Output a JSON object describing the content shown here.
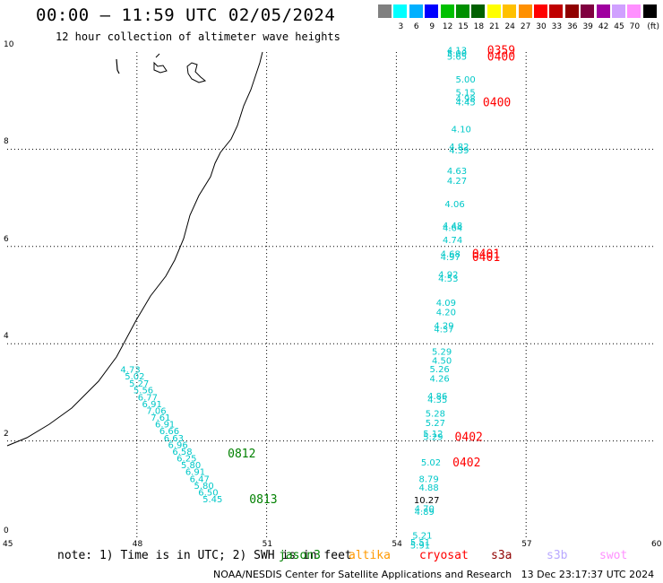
{
  "header": {
    "title": "00:00 – 11:59 UTC 02/05/2024",
    "subtitle": "12 hour collection of altimeter wave heights"
  },
  "color_scale": {
    "unit": "(ft)",
    "swatches": [
      {
        "color": "#808080",
        "label": ""
      },
      {
        "color": "#00ffff",
        "label": "3"
      },
      {
        "color": "#00b0ff",
        "label": "6"
      },
      {
        "color": "#0000ff",
        "label": "9"
      },
      {
        "color": "#00c000",
        "label": "12"
      },
      {
        "color": "#009000",
        "label": "15"
      },
      {
        "color": "#006000",
        "label": "18"
      },
      {
        "color": "#ffff00",
        "label": "21"
      },
      {
        "color": "#ffc000",
        "label": "24"
      },
      {
        "color": "#ff9000",
        "label": "27"
      },
      {
        "color": "#ff0000",
        "label": "30"
      },
      {
        "color": "#c00000",
        "label": "33"
      },
      {
        "color": "#900000",
        "label": "36"
      },
      {
        "color": "#800040",
        "label": "39"
      },
      {
        "color": "#a000a0",
        "label": "42"
      },
      {
        "color": "#d0a0ff",
        "label": "45"
      },
      {
        "color": "#ff90ff",
        "label": "70"
      },
      {
        "color": "#000000",
        "label": ""
      }
    ]
  },
  "footer": {
    "note": "note: 1) Time is in UTC; 2) SWH is in feet",
    "credit": "NOAA/NESDIS Center for Satellite Applications and Research   13 Dec 23:17:37 UTC 2024",
    "satellites": [
      {
        "name": "jason3",
        "color": "#008000"
      },
      {
        "name": "altika",
        "color": "#ff9900"
      },
      {
        "name": "cryosat",
        "color": "#ff0000"
      },
      {
        "name": "s3a",
        "color": "#900000"
      },
      {
        "name": "s3b",
        "color": "#b8a8ff"
      },
      {
        "name": "swot",
        "color": "#ff90ff"
      }
    ]
  },
  "chart_data": {
    "type": "scatter",
    "title": "00:00 – 11:59 UTC 02/05/2024",
    "subtitle": "12 hour collection of altimeter wave heights",
    "xlabel": "",
    "ylabel": "",
    "xlim": [
      45,
      60
    ],
    "ylim": [
      0,
      10
    ],
    "x_ticks": [
      "45",
      "48",
      "51",
      "54",
      "57",
      "60"
    ],
    "y_ticks": [
      "0",
      "2",
      "4",
      "6",
      "8",
      "10"
    ],
    "grid": true,
    "tracks": [
      {
        "satellite": "jason3",
        "label_color": "#008000",
        "value_color": "#00c8c8",
        "points": [
          {
            "lon": 47.85,
            "lat": 3.48,
            "swh": "4.73"
          },
          {
            "lon": 47.95,
            "lat": 3.34,
            "swh": "5.02"
          },
          {
            "lon": 48.05,
            "lat": 3.19,
            "swh": "5.27"
          },
          {
            "lon": 48.15,
            "lat": 3.05,
            "swh": "5.56"
          },
          {
            "lon": 48.25,
            "lat": 2.91,
            "swh": "6.77"
          },
          {
            "lon": 48.35,
            "lat": 2.77,
            "swh": "6.91"
          },
          {
            "lon": 48.45,
            "lat": 2.63,
            "swh": "7.06"
          },
          {
            "lon": 48.55,
            "lat": 2.49,
            "swh": "7.61"
          },
          {
            "lon": 48.65,
            "lat": 2.35,
            "swh": "6.91"
          },
          {
            "lon": 48.75,
            "lat": 2.21,
            "swh": "6.66"
          },
          {
            "lon": 48.85,
            "lat": 2.07,
            "swh": "6.63"
          },
          {
            "lon": 48.95,
            "lat": 1.93,
            "swh": "6.96"
          },
          {
            "lon": 49.05,
            "lat": 1.79,
            "swh": "6.58"
          },
          {
            "lon": 49.15,
            "lat": 1.65,
            "swh": "6.25"
          },
          {
            "lon": 49.25,
            "lat": 1.51,
            "swh": "5.80"
          },
          {
            "lon": 49.35,
            "lat": 1.37,
            "swh": "6.91"
          },
          {
            "lon": 49.45,
            "lat": 1.23,
            "swh": "6.47"
          },
          {
            "lon": 49.55,
            "lat": 1.09,
            "swh": "5.80"
          },
          {
            "lon": 49.65,
            "lat": 0.95,
            "swh": "6.50"
          },
          {
            "lon": 49.75,
            "lat": 0.81,
            "swh": "5.45"
          }
        ],
        "time_labels": [
          {
            "lon": 50.1,
            "lat": 1.75,
            "text": "0812"
          },
          {
            "lon": 50.6,
            "lat": 0.81,
            "text": "0813"
          }
        ]
      },
      {
        "satellite": "cryosat",
        "label_color": "#ff0000",
        "value_color": "#00c8c8",
        "points": [
          {
            "lon": 55.4,
            "lat": 10.05,
            "swh": "4.13"
          },
          {
            "lon": 55.4,
            "lat": 9.98,
            "swh": "5.00"
          },
          {
            "lon": 55.4,
            "lat": 9.92,
            "swh": "5.65"
          },
          {
            "lon": 55.6,
            "lat": 9.45,
            "swh": "5.00"
          },
          {
            "lon": 55.6,
            "lat": 9.18,
            "swh": "5.15"
          },
          {
            "lon": 55.6,
            "lat": 9.05,
            "swh": "4.98"
          },
          {
            "lon": 55.6,
            "lat": 8.98,
            "swh": "4.45"
          },
          {
            "lon": 55.5,
            "lat": 8.42,
            "swh": "4.10"
          },
          {
            "lon": 55.45,
            "lat": 8.06,
            "swh": "4.82"
          },
          {
            "lon": 55.45,
            "lat": 7.99,
            "swh": "4.39"
          },
          {
            "lon": 55.4,
            "lat": 7.56,
            "swh": "4.63"
          },
          {
            "lon": 55.4,
            "lat": 7.36,
            "swh": "4.27"
          },
          {
            "lon": 55.35,
            "lat": 6.88,
            "swh": "4.06"
          },
          {
            "lon": 55.3,
            "lat": 6.44,
            "swh": "4.48"
          },
          {
            "lon": 55.3,
            "lat": 6.39,
            "swh": "4.64"
          },
          {
            "lon": 55.3,
            "lat": 6.14,
            "swh": "4.74"
          },
          {
            "lon": 55.25,
            "lat": 5.86,
            "swh": "4.68"
          },
          {
            "lon": 55.25,
            "lat": 5.79,
            "swh": "4.97"
          },
          {
            "lon": 55.2,
            "lat": 5.43,
            "swh": "4.92"
          },
          {
            "lon": 55.2,
            "lat": 5.35,
            "swh": "4.53"
          },
          {
            "lon": 55.15,
            "lat": 4.85,
            "swh": "4.09"
          },
          {
            "lon": 55.15,
            "lat": 4.66,
            "swh": "4.20"
          },
          {
            "lon": 55.1,
            "lat": 4.38,
            "swh": "4.29"
          },
          {
            "lon": 55.1,
            "lat": 4.31,
            "swh": "4.37"
          },
          {
            "lon": 55.05,
            "lat": 3.85,
            "swh": "5.29"
          },
          {
            "lon": 55.05,
            "lat": 3.66,
            "swh": "4.50"
          },
          {
            "lon": 55.0,
            "lat": 3.49,
            "swh": "5.26"
          },
          {
            "lon": 55.0,
            "lat": 3.29,
            "swh": "4.26"
          },
          {
            "lon": 54.95,
            "lat": 2.93,
            "swh": "4.86"
          },
          {
            "lon": 54.95,
            "lat": 2.86,
            "swh": "4.35"
          },
          {
            "lon": 54.9,
            "lat": 2.57,
            "swh": "5.28"
          },
          {
            "lon": 54.9,
            "lat": 2.38,
            "swh": "5.27"
          },
          {
            "lon": 54.85,
            "lat": 2.16,
            "swh": "5.12"
          },
          {
            "lon": 54.85,
            "lat": 2.09,
            "swh": "5.29"
          },
          {
            "lon": 54.8,
            "lat": 1.57,
            "swh": "5.02"
          },
          {
            "lon": 54.75,
            "lat": 1.23,
            "swh": "8.79"
          },
          {
            "lon": 54.75,
            "lat": 1.05,
            "swh": "4.88"
          },
          {
            "lon": 54.7,
            "lat": 0.79,
            "swh": "10.27"
          },
          {
            "lon": 54.65,
            "lat": 0.62,
            "swh": "4.70"
          },
          {
            "lon": 54.65,
            "lat": 0.55,
            "swh": "4.89"
          },
          {
            "lon": 54.6,
            "lat": 0.06,
            "swh": "5.21"
          },
          {
            "lon": 54.55,
            "lat": -0.07,
            "swh": "5.51"
          },
          {
            "lon": 54.55,
            "lat": -0.14,
            "swh": "5.91"
          }
        ],
        "time_labels": [
          {
            "lon": 56.1,
            "lat": 10.05,
            "text": "0359"
          },
          {
            "lon": 56.1,
            "lat": 9.92,
            "text": "0400"
          },
          {
            "lon": 56.0,
            "lat": 8.98,
            "text": "0400"
          },
          {
            "lon": 55.75,
            "lat": 5.86,
            "text": "0401"
          },
          {
            "lon": 55.75,
            "lat": 5.79,
            "text": "0401"
          },
          {
            "lon": 55.35,
            "lat": 2.09,
            "text": "0402"
          },
          {
            "lon": 55.3,
            "lat": 1.57,
            "text": "0402"
          }
        ]
      }
    ]
  }
}
